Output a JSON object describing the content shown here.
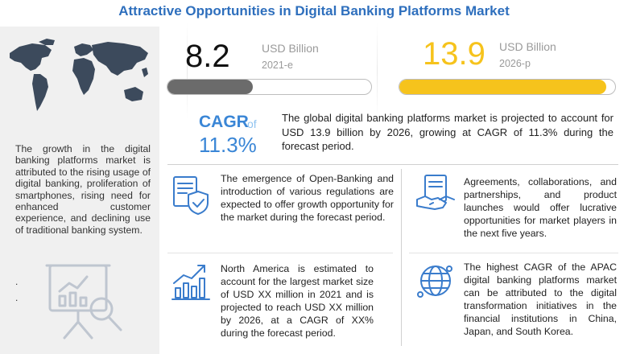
{
  "title": "Attractive Opportunities in Digital Banking Platforms Market",
  "left_panel": {
    "description": "The growth in the digital banking platforms market is attributed to the rising usage of digital banking, proliferation of smartphones, rising need for enhanced customer experience, and declining use of traditional banking system.",
    "bullet_1": ".",
    "bullet_2": "."
  },
  "stat_2021": {
    "value": "8.2",
    "unit": "USD Billion",
    "year": "2021-e",
    "bar_fill_fraction": 0.42,
    "bar_color": "#6b6b6b"
  },
  "stat_2026": {
    "value": "13.9",
    "unit": "USD Billion",
    "year": "2026-p",
    "bar_fill_fraction": 0.96,
    "bar_color": "#f6c31c",
    "value_color": "#f6c31c"
  },
  "cagr": {
    "label": "CAGR",
    "of": "of",
    "value": "11.3%"
  },
  "summary": "The global digital banking platforms market is projected to account for USD 13.9 billion by 2026, growing at CAGR of 11.3% during the forecast period.",
  "insights": {
    "open_banking": "The emergence of Open-Banking and introduction of various regulations are expected to offer growth opportunity for the market during the forecast period.",
    "north_america": "North America is estimated to account for the largest market size of USD XX million in 2021 and is projected to reach USD XX million by 2026, at a CAGR of XX% during the forecast period.",
    "agreements": "Agreements, collaborations, and partnerships, and product launches would offer lucrative opportunities for market players in the next five years.",
    "apac": "The highest CAGR of the APAC digital banking platforms market can be attributed to the digital transformation initiatives in the financial institutions in China, Japan, and South Korea."
  },
  "icons": {
    "map": "world-map-icon",
    "analysis": "chart-magnifier-icon",
    "regulation": "document-shield-icon",
    "growth": "bar-growth-icon",
    "handshake": "handshake-icon",
    "globe": "globe-network-icon"
  },
  "colors": {
    "title": "#2e6fbd",
    "accent_blue": "#3a86d6",
    "icon_blue": "#3a7ccc"
  }
}
